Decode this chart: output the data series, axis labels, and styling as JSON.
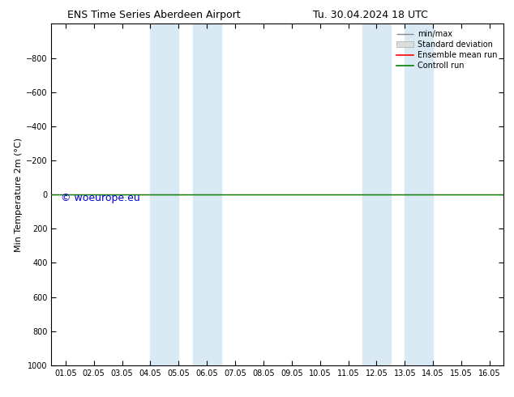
{
  "title_left": "ENS Time Series Aberdeen Airport",
  "title_right": "Tu. 30.04.2024 18 UTC",
  "ylabel": "Min Temperature 2m (°C)",
  "ylim_bottom": 1000,
  "ylim_top": -1000,
  "yticks": [
    -800,
    -600,
    -400,
    -200,
    0,
    200,
    400,
    600,
    800,
    1000
  ],
  "xtick_labels": [
    "01.05",
    "02.05",
    "03.05",
    "04.05",
    "05.05",
    "06.05",
    "07.05",
    "08.05",
    "09.05",
    "10.05",
    "11.05",
    "12.05",
    "13.05",
    "14.05",
    "15.05",
    "16.05"
  ],
  "shaded_regions": [
    [
      3.0,
      4.0
    ],
    [
      4.5,
      5.5
    ],
    [
      10.5,
      11.5
    ],
    [
      12.0,
      13.0
    ]
  ],
  "shaded_color": "#daeaf5",
  "control_run_y": 0.0,
  "control_run_color": "#008000",
  "ensemble_mean_color": "#ff0000",
  "watermark": "© woeurope.eu",
  "watermark_color": "#0000cc",
  "legend_labels": [
    "min/max",
    "Standard deviation",
    "Ensemble mean run",
    "Controll run"
  ],
  "background_color": "#ffffff",
  "xlim_left": -0.5,
  "xlim_right": 15.5
}
